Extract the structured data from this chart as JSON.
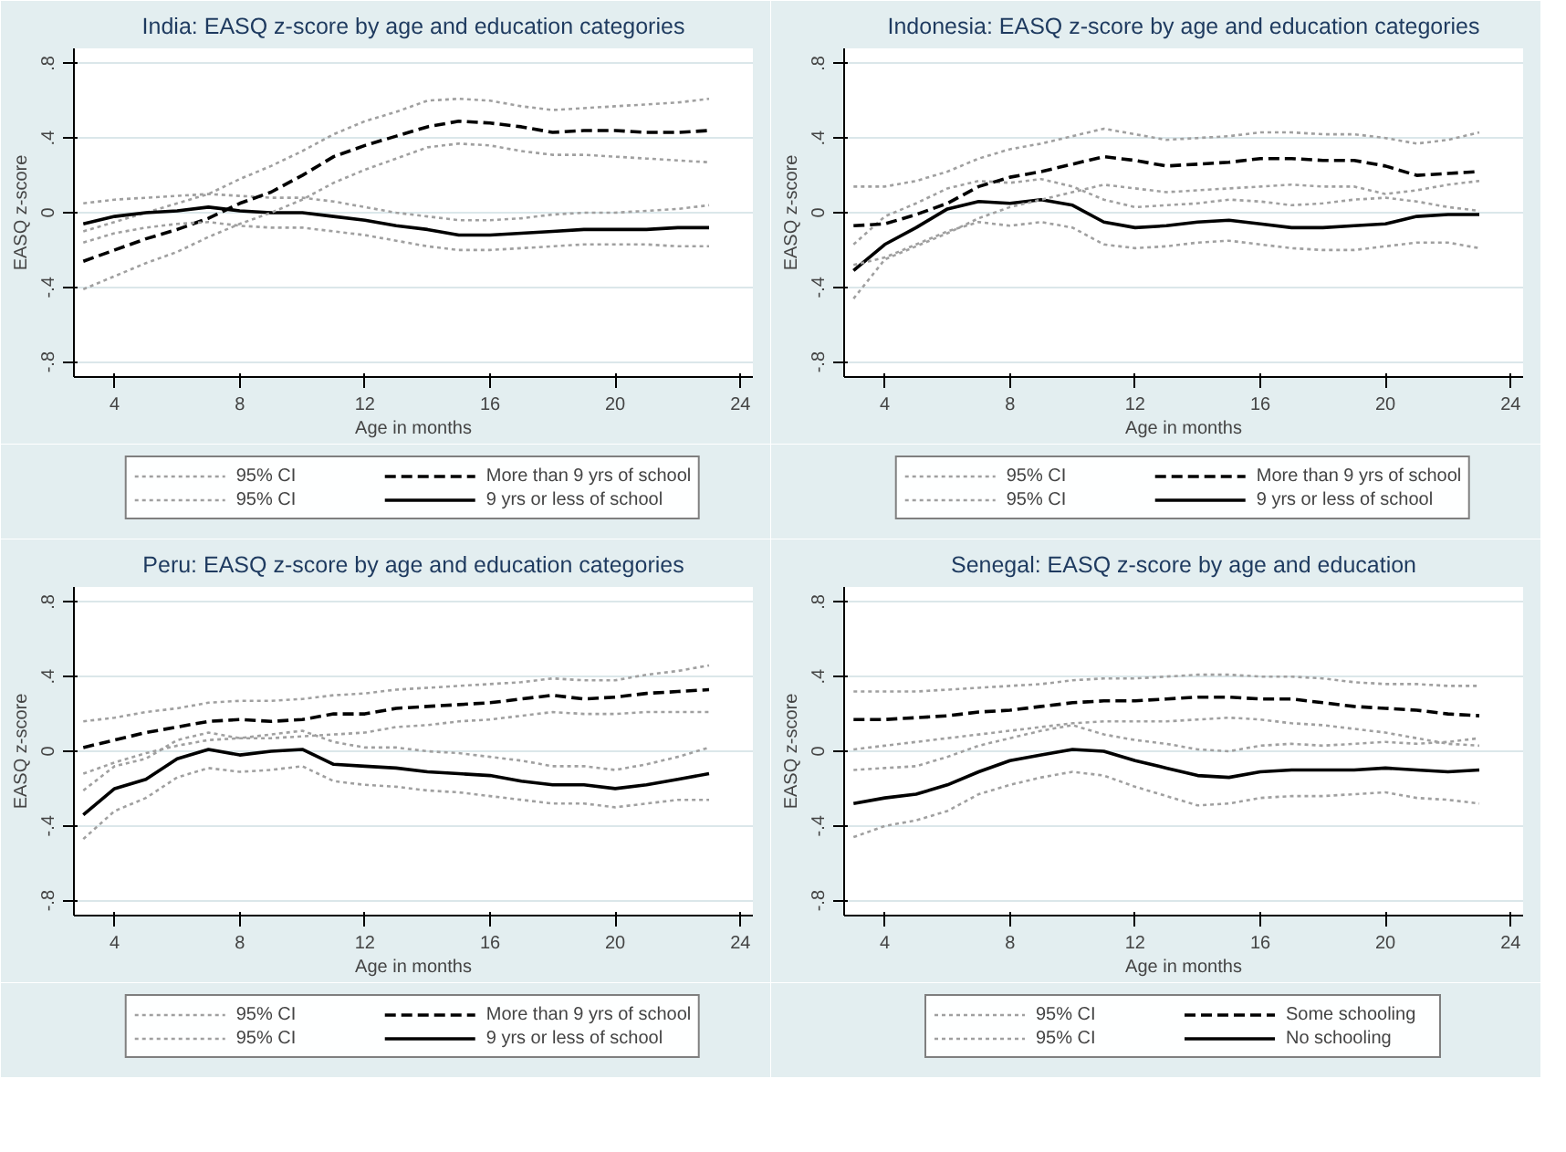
{
  "chart_data": [
    {
      "type": "line",
      "title": "India: EASQ z-score by age and education categories",
      "xlabel": "Age in months",
      "ylabel": "EASQ z-score",
      "x": [
        3,
        4,
        5,
        6,
        7,
        8,
        9,
        10,
        11,
        12,
        13,
        14,
        15,
        16,
        17,
        18,
        19,
        20,
        21,
        22,
        23
      ],
      "xlim": [
        2.7,
        24.4
      ],
      "ylim": [
        -0.88,
        0.88
      ],
      "xticks": [
        4,
        8,
        12,
        16,
        20,
        24
      ],
      "yticks": [
        {
          "value": -0.8,
          "label": "-.8"
        },
        {
          "value": -0.4,
          "label": "-.4"
        },
        0,
        {
          "value": 0.4,
          "label": ".4"
        },
        {
          "value": 0.8,
          "label": ".8"
        }
      ],
      "grid": "y",
      "legend": "bottom",
      "series": [
        {
          "name": "95% CI",
          "color": "#a0a0a0",
          "line_style": "dotted",
          "values": [
            -0.1,
            -0.05,
            0.0,
            0.05,
            0.1,
            0.18,
            0.25,
            0.33,
            0.42,
            0.49,
            0.54,
            0.6,
            0.61,
            0.6,
            0.57,
            0.55,
            0.56,
            0.57,
            0.58,
            0.59,
            0.61
          ]
        },
        {
          "name": "95% CI",
          "color": "#a0a0a0",
          "line_style": "dotted",
          "values": [
            0.05,
            0.07,
            0.08,
            0.09,
            0.1,
            0.09,
            0.08,
            0.08,
            0.06,
            0.03,
            0.0,
            -0.02,
            -0.04,
            -0.04,
            -0.03,
            -0.01,
            0.0,
            0.0,
            0.01,
            0.02,
            0.04
          ]
        },
        {
          "name": "More than 9 yrs of school",
          "color": "#000000",
          "line_style": "dashed",
          "values": [
            -0.26,
            -0.2,
            -0.14,
            -0.09,
            -0.03,
            0.05,
            0.11,
            0.2,
            0.3,
            0.36,
            0.41,
            0.46,
            0.49,
            0.48,
            0.46,
            0.43,
            0.44,
            0.44,
            0.43,
            0.43,
            0.44
          ]
        },
        {
          "name": "9 yrs or less of school",
          "color": "#000000",
          "line_style": "solid",
          "values": [
            -0.06,
            -0.02,
            0.0,
            0.01,
            0.03,
            0.01,
            0.0,
            0.0,
            -0.02,
            -0.04,
            -0.07,
            -0.09,
            -0.12,
            -0.12,
            -0.11,
            -0.1,
            -0.09,
            -0.09,
            -0.09,
            -0.08,
            -0.08
          ]
        },
        {
          "color": "#a0a0a0",
          "line_style": "dotted",
          "values": [
            -0.41,
            -0.34,
            -0.27,
            -0.21,
            -0.13,
            -0.06,
            0.0,
            0.07,
            0.16,
            0.23,
            0.29,
            0.35,
            0.37,
            0.36,
            0.33,
            0.31,
            0.31,
            0.3,
            0.29,
            0.28,
            0.27
          ]
        },
        {
          "color": "#a0a0a0",
          "line_style": "dotted",
          "values": [
            -0.16,
            -0.11,
            -0.08,
            -0.06,
            -0.05,
            -0.07,
            -0.08,
            -0.08,
            -0.1,
            -0.12,
            -0.15,
            -0.18,
            -0.2,
            -0.2,
            -0.19,
            -0.18,
            -0.17,
            -0.17,
            -0.17,
            -0.18,
            -0.18
          ]
        }
      ]
    },
    {
      "type": "line",
      "title": "Indonesia: EASQ z-score by age and education categories",
      "xlabel": "Age in months",
      "ylabel": "EASQ z-score",
      "x": [
        3,
        4,
        5,
        6,
        7,
        8,
        9,
        10,
        11,
        12,
        13,
        14,
        15,
        16,
        17,
        18,
        19,
        20,
        21,
        22,
        23
      ],
      "xlim": [
        2.7,
        24.4
      ],
      "ylim": [
        -0.88,
        0.88
      ],
      "xticks": [
        4,
        8,
        12,
        16,
        20,
        24
      ],
      "yticks": [
        {
          "value": -0.8,
          "label": "-.8"
        },
        {
          "value": -0.4,
          "label": "-.4"
        },
        0,
        {
          "value": 0.4,
          "label": ".4"
        },
        {
          "value": 0.8,
          "label": ".8"
        }
      ],
      "grid": "y",
      "legend": "bottom",
      "series": [
        {
          "name": "95% CI",
          "color": "#a0a0a0",
          "line_style": "dotted",
          "values": [
            0.14,
            0.14,
            0.17,
            0.22,
            0.29,
            0.34,
            0.37,
            0.41,
            0.45,
            0.42,
            0.39,
            0.4,
            0.41,
            0.43,
            0.43,
            0.42,
            0.42,
            0.4,
            0.37,
            0.39,
            0.43
          ]
        },
        {
          "name": "95% CI",
          "color": "#a0a0a0",
          "line_style": "dotted",
          "values": [
            -0.17,
            -0.02,
            0.05,
            0.13,
            0.17,
            0.16,
            0.18,
            0.14,
            0.07,
            0.03,
            0.04,
            0.05,
            0.07,
            0.06,
            0.04,
            0.05,
            0.07,
            0.08,
            0.06,
            0.03,
            0.01
          ]
        },
        {
          "name": "More than 9 yrs of school",
          "color": "#000000",
          "line_style": "dashed",
          "values": [
            -0.07,
            -0.06,
            -0.01,
            0.05,
            0.14,
            0.19,
            0.22,
            0.26,
            0.3,
            0.28,
            0.25,
            0.26,
            0.27,
            0.29,
            0.29,
            0.28,
            0.28,
            0.25,
            0.2,
            0.21,
            0.22
          ]
        },
        {
          "name": "9 yrs or less of school",
          "color": "#000000",
          "line_style": "solid",
          "values": [
            -0.31,
            -0.17,
            -0.08,
            0.02,
            0.06,
            0.05,
            0.07,
            0.04,
            -0.05,
            -0.08,
            -0.07,
            -0.05,
            -0.04,
            -0.06,
            -0.08,
            -0.08,
            -0.07,
            -0.06,
            -0.02,
            -0.01,
            -0.01
          ]
        },
        {
          "color": "#a0a0a0",
          "line_style": "dotted",
          "values": [
            -0.46,
            -0.25,
            -0.18,
            -0.11,
            -0.03,
            0.03,
            0.07,
            0.11,
            0.15,
            0.13,
            0.11,
            0.12,
            0.13,
            0.14,
            0.15,
            0.14,
            0.14,
            0.1,
            0.12,
            0.15,
            0.17
          ]
        },
        {
          "color": "#a0a0a0",
          "line_style": "dotted",
          "values": [
            -0.28,
            -0.24,
            -0.17,
            -0.1,
            -0.05,
            -0.07,
            -0.05,
            -0.08,
            -0.17,
            -0.19,
            -0.18,
            -0.16,
            -0.15,
            -0.17,
            -0.19,
            -0.2,
            -0.2,
            -0.18,
            -0.16,
            -0.16,
            -0.19
          ]
        }
      ]
    },
    {
      "type": "line",
      "title": "Peru: EASQ z-score by age and education categories",
      "xlabel": "Age in months",
      "ylabel": "EASQ z-score",
      "x": [
        3,
        4,
        5,
        6,
        7,
        8,
        9,
        10,
        11,
        12,
        13,
        14,
        15,
        16,
        17,
        18,
        19,
        20,
        21,
        22,
        23
      ],
      "xlim": [
        2.7,
        24.4
      ],
      "ylim": [
        -0.88,
        0.88
      ],
      "xticks": [
        4,
        8,
        12,
        16,
        20,
        24
      ],
      "yticks": [
        {
          "value": -0.8,
          "label": "-.8"
        },
        {
          "value": -0.4,
          "label": "-.4"
        },
        0,
        {
          "value": 0.4,
          "label": ".4"
        },
        {
          "value": 0.8,
          "label": ".8"
        }
      ],
      "grid": "y",
      "legend": "bottom",
      "series": [
        {
          "name": "95% CI",
          "color": "#a0a0a0",
          "line_style": "dotted",
          "values": [
            0.16,
            0.18,
            0.21,
            0.23,
            0.26,
            0.27,
            0.27,
            0.28,
            0.3,
            0.31,
            0.33,
            0.34,
            0.35,
            0.36,
            0.37,
            0.39,
            0.38,
            0.38,
            0.41,
            0.43,
            0.46
          ]
        },
        {
          "name": "95% CI",
          "color": "#a0a0a0",
          "line_style": "dotted",
          "values": [
            -0.21,
            -0.08,
            -0.04,
            0.06,
            0.1,
            0.07,
            0.09,
            0.11,
            0.05,
            0.02,
            0.02,
            0.0,
            -0.01,
            -0.03,
            -0.05,
            -0.08,
            -0.08,
            -0.1,
            -0.07,
            -0.03,
            0.02
          ]
        },
        {
          "name": "More than 9 yrs of school",
          "color": "#000000",
          "line_style": "dashed",
          "values": [
            0.02,
            0.06,
            0.1,
            0.13,
            0.16,
            0.17,
            0.16,
            0.17,
            0.2,
            0.2,
            0.23,
            0.24,
            0.25,
            0.26,
            0.28,
            0.3,
            0.28,
            0.29,
            0.31,
            0.32,
            0.33
          ]
        },
        {
          "name": "9 yrs or less of school",
          "color": "#000000",
          "line_style": "solid",
          "values": [
            -0.34,
            -0.2,
            -0.15,
            -0.04,
            0.01,
            -0.02,
            0.0,
            0.01,
            -0.07,
            -0.08,
            -0.09,
            -0.11,
            -0.12,
            -0.13,
            -0.16,
            -0.18,
            -0.18,
            -0.2,
            -0.18,
            -0.15,
            -0.12
          ]
        },
        {
          "color": "#a0a0a0",
          "line_style": "dotted",
          "values": [
            -0.12,
            -0.06,
            -0.01,
            0.03,
            0.06,
            0.07,
            0.07,
            0.08,
            0.09,
            0.1,
            0.13,
            0.14,
            0.16,
            0.17,
            0.19,
            0.21,
            0.2,
            0.2,
            0.21,
            0.21,
            0.21
          ]
        },
        {
          "color": "#a0a0a0",
          "line_style": "dotted",
          "values": [
            -0.47,
            -0.32,
            -0.25,
            -0.14,
            -0.09,
            -0.11,
            -0.1,
            -0.08,
            -0.16,
            -0.18,
            -0.19,
            -0.21,
            -0.22,
            -0.24,
            -0.26,
            -0.28,
            -0.28,
            -0.3,
            -0.28,
            -0.26,
            -0.26
          ]
        }
      ]
    },
    {
      "type": "line",
      "title": "Senegal: EASQ z-score by age and education",
      "xlabel": "Age in months",
      "ylabel": "EASQ z-score",
      "x": [
        3,
        4,
        5,
        6,
        7,
        8,
        9,
        10,
        11,
        12,
        13,
        14,
        15,
        16,
        17,
        18,
        19,
        20,
        21,
        22,
        23
      ],
      "xlim": [
        2.7,
        24.4
      ],
      "ylim": [
        -0.88,
        0.88
      ],
      "xticks": [
        4,
        8,
        12,
        16,
        20,
        24
      ],
      "yticks": [
        {
          "value": -0.8,
          "label": "-.8"
        },
        {
          "value": -0.4,
          "label": "-.4"
        },
        0,
        {
          "value": 0.4,
          "label": ".4"
        },
        {
          "value": 0.8,
          "label": ".8"
        }
      ],
      "grid": "y",
      "legend": "bottom",
      "series": [
        {
          "name": "95% CI",
          "color": "#a0a0a0",
          "line_style": "dotted",
          "values": [
            0.32,
            0.32,
            0.32,
            0.33,
            0.34,
            0.35,
            0.36,
            0.38,
            0.39,
            0.39,
            0.4,
            0.41,
            0.41,
            0.4,
            0.4,
            0.39,
            0.37,
            0.36,
            0.36,
            0.35,
            0.35
          ]
        },
        {
          "name": "95% CI",
          "color": "#a0a0a0",
          "line_style": "dotted",
          "values": [
            -0.1,
            -0.09,
            -0.08,
            -0.03,
            0.03,
            0.07,
            0.11,
            0.14,
            0.09,
            0.06,
            0.04,
            0.01,
            0.0,
            0.03,
            0.04,
            0.03,
            0.04,
            0.05,
            0.04,
            0.05,
            0.07
          ]
        },
        {
          "name": "Some schooling",
          "color": "#000000",
          "line_style": "dashed",
          "values": [
            0.17,
            0.17,
            0.18,
            0.19,
            0.21,
            0.22,
            0.24,
            0.26,
            0.27,
            0.27,
            0.28,
            0.29,
            0.29,
            0.28,
            0.28,
            0.26,
            0.24,
            0.23,
            0.22,
            0.2,
            0.19
          ]
        },
        {
          "name": "No schooling",
          "color": "#000000",
          "line_style": "solid",
          "values": [
            -0.28,
            -0.25,
            -0.23,
            -0.18,
            -0.11,
            -0.05,
            -0.02,
            0.01,
            0.0,
            -0.05,
            -0.09,
            -0.13,
            -0.14,
            -0.11,
            -0.1,
            -0.1,
            -0.1,
            -0.09,
            -0.1,
            -0.11,
            -0.1
          ]
        },
        {
          "color": "#a0a0a0",
          "line_style": "dotted",
          "values": [
            0.01,
            0.03,
            0.05,
            0.07,
            0.09,
            0.11,
            0.13,
            0.15,
            0.16,
            0.16,
            0.16,
            0.17,
            0.18,
            0.17,
            0.15,
            0.14,
            0.12,
            0.1,
            0.07,
            0.04,
            0.03
          ]
        },
        {
          "color": "#a0a0a0",
          "line_style": "dotted",
          "values": [
            -0.46,
            -0.4,
            -0.37,
            -0.32,
            -0.23,
            -0.18,
            -0.14,
            -0.11,
            -0.13,
            -0.19,
            -0.24,
            -0.29,
            -0.28,
            -0.25,
            -0.24,
            -0.24,
            -0.23,
            -0.22,
            -0.25,
            -0.26,
            -0.28
          ]
        }
      ]
    }
  ]
}
